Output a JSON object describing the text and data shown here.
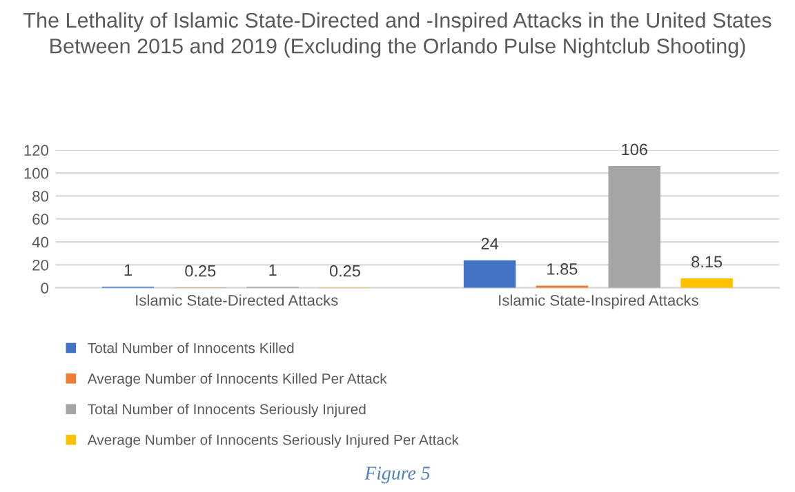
{
  "chart_data": {
    "type": "bar",
    "title": "The Lethality of Islamic State-Directed and -Inspired Attacks in the United States Between 2015 and 2019 (Excluding the Orlando Pulse Nightclub Shooting)",
    "categories": [
      "Islamic State-Directed Attacks",
      "Islamic State-Inspired Attacks"
    ],
    "series": [
      {
        "name": "Total Number of Innocents Killed",
        "color": "#4472c4",
        "values": [
          1,
          24
        ]
      },
      {
        "name": "Average Number of Innocents Killed Per Attack",
        "color": "#ed7d31",
        "values": [
          0.25,
          1.85
        ]
      },
      {
        "name": "Total Number of Innocents Seriously Injured",
        "color": "#a5a5a5",
        "values": [
          1,
          106
        ]
      },
      {
        "name": "Average Number of Innocents Seriously Injured Per Attack",
        "color": "#ffc000",
        "values": [
          0.25,
          8.15
        ]
      }
    ],
    "ylim": [
      0,
      120
    ],
    "yticks": [
      0,
      20,
      40,
      60,
      80,
      100,
      120
    ],
    "grid": "y",
    "legend": "bottom",
    "data_labels": true,
    "annotations": [
      "Figure 5"
    ]
  }
}
